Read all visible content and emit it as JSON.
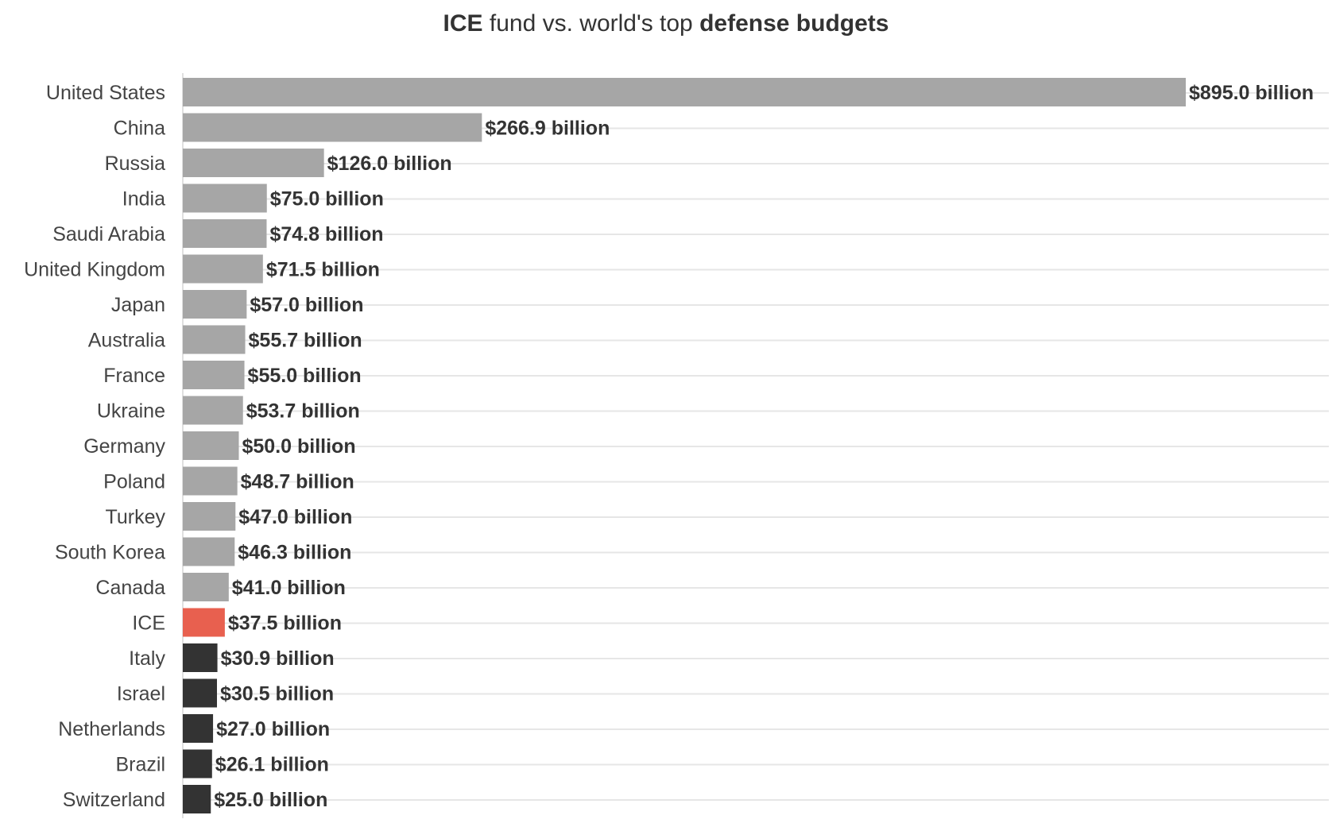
{
  "title": {
    "part1_bold": "ICE",
    "part2": " fund vs. world's top ",
    "part3_bold": "defense budgets"
  },
  "colors": {
    "default": "#a6a6a6",
    "highlight": "#e8604f",
    "dark": "#333333"
  },
  "chart_data": {
    "type": "bar",
    "orientation": "horizontal",
    "title": "ICE fund vs. world's top defense budgets",
    "xlabel": "",
    "ylabel": "",
    "xlim": [
      0,
      895
    ],
    "grid": true,
    "value_unit": "billion USD",
    "categories": [
      "United States",
      "China",
      "Russia",
      "India",
      "Saudi Arabia",
      "United Kingdom",
      "Japan",
      "Australia",
      "France",
      "Ukraine",
      "Germany",
      "Poland",
      "Turkey",
      "South Korea",
      "Canada",
      "ICE",
      "Italy",
      "Israel",
      "Netherlands",
      "Brazil",
      "Switzerland"
    ],
    "values": [
      895.0,
      266.9,
      126.0,
      75.0,
      74.8,
      71.5,
      57.0,
      55.7,
      55.0,
      53.7,
      50.0,
      48.7,
      47.0,
      46.3,
      41.0,
      37.5,
      30.9,
      30.5,
      27.0,
      26.1,
      25.0
    ],
    "value_labels": [
      "$895.0 billion",
      "$266.9 billion",
      "$126.0 billion",
      "$75.0 billion",
      "$74.8 billion",
      "$71.5 billion",
      "$57.0 billion",
      "$55.7 billion",
      "$55.0 billion",
      "$53.7 billion",
      "$50.0 billion",
      "$48.7 billion",
      "$47.0 billion",
      "$46.3 billion",
      "$41.0 billion",
      "$37.5 billion",
      "$30.9 billion",
      "$30.5 billion",
      "$27.0 billion",
      "$26.1 billion",
      "$25.0 billion"
    ],
    "bar_color_groups": [
      "default",
      "default",
      "default",
      "default",
      "default",
      "default",
      "default",
      "default",
      "default",
      "default",
      "default",
      "default",
      "default",
      "default",
      "default",
      "highlight",
      "dark",
      "dark",
      "dark",
      "dark",
      "dark"
    ]
  }
}
